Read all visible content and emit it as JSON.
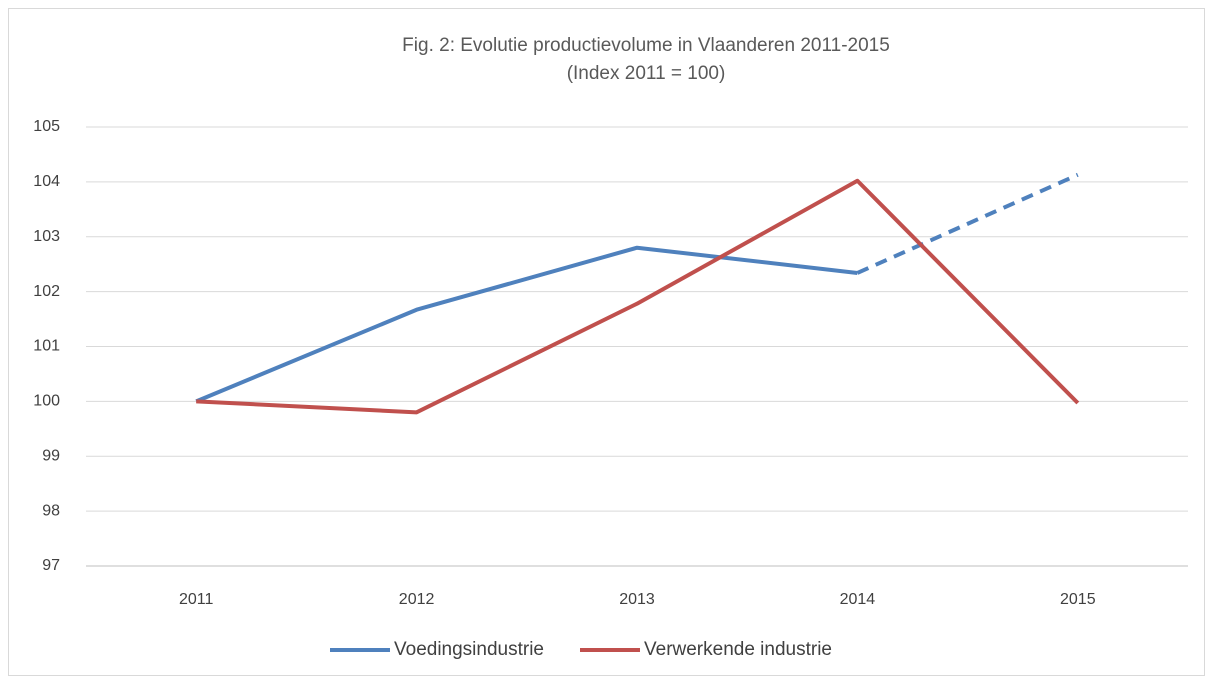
{
  "chart_data": {
    "type": "line",
    "title": "Fig. 2: Evolutie productievolume in Vlaanderen 2011-2015",
    "subtitle": "(Index 2011 = 100)",
    "categories": [
      "2011",
      "2012",
      "2013",
      "2014",
      "2015"
    ],
    "series": [
      {
        "name": "Voedingsindustrie",
        "color": "#4f81bd",
        "values": [
          100,
          101.67,
          102.8,
          102.34,
          104.13
        ],
        "dash_after_index": 3
      },
      {
        "name": "Verwerkende industrie",
        "color": "#c0504d",
        "values": [
          100,
          99.8,
          101.78,
          104.02,
          99.97
        ]
      }
    ],
    "ylim": [
      97,
      105
    ],
    "yticks": [
      97,
      98,
      99,
      100,
      101,
      102,
      103,
      104,
      105
    ],
    "grid": true,
    "legend": "bottom"
  }
}
